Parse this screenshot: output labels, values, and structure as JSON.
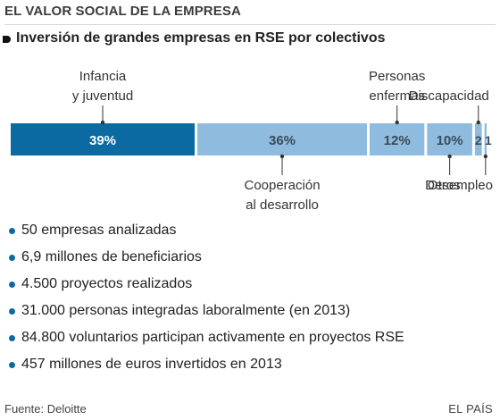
{
  "header": {
    "title": "EL VALOR SOCIAL DE LA EMPRESA",
    "subtitle": "Inversión de grandes empresas en RSE por colectivos"
  },
  "chart_data": {
    "type": "bar",
    "orientation": "horizontal-stacked",
    "unit": "%",
    "segments": [
      {
        "label": "Infancia y juventud",
        "label_lines": [
          "Infancia",
          "y juventud"
        ],
        "value": 39,
        "display": "39%",
        "color": "#0a6aa1",
        "label_side": "top"
      },
      {
        "label": "Cooperación al desarrollo",
        "label_lines": [
          "Cooperación",
          "al desarrollo"
        ],
        "value": 36,
        "display": "36%",
        "color": "#8fbcde",
        "label_side": "bottom"
      },
      {
        "label": "Personas enfermas",
        "label_lines": [
          "Personas",
          "enfermas"
        ],
        "value": 12,
        "display": "12%",
        "color": "#8fbcde",
        "label_side": "top"
      },
      {
        "label": "Otros",
        "label_lines": [
          "Otros"
        ],
        "value": 10,
        "display": "10%",
        "color": "#8fbcde",
        "label_side": "bottom"
      },
      {
        "label": "Discapacidad",
        "label_lines": [
          "Discapacidad"
        ],
        "value": 2,
        "display": "2",
        "color": "#8fbcde",
        "label_side": "top"
      },
      {
        "label": "Desempleo",
        "label_lines": [
          "Desempleo"
        ],
        "value": 1,
        "display": "1",
        "color": "#8fbcde",
        "label_side": "bottom"
      }
    ]
  },
  "facts": [
    "50 empresas analizadas",
    "6,9 millones de beneficiarios",
    "4.500 proyectos realizados",
    "31.000 personas integradas laboralmente (en 2013)",
    "84.800 voluntarios participan activamente en proyectos RSE",
    "457 millones de euros invertidos en 2013"
  ],
  "footer": {
    "source": "Fuente: Deloitte",
    "brand": "EL PAÍS"
  },
  "colors": {
    "accent": "#0a6aa1",
    "light_segment": "#8fbcde",
    "segment_text_light": "#ffffff",
    "segment_text_dark": "#3a4a58",
    "leader": "#333333"
  }
}
